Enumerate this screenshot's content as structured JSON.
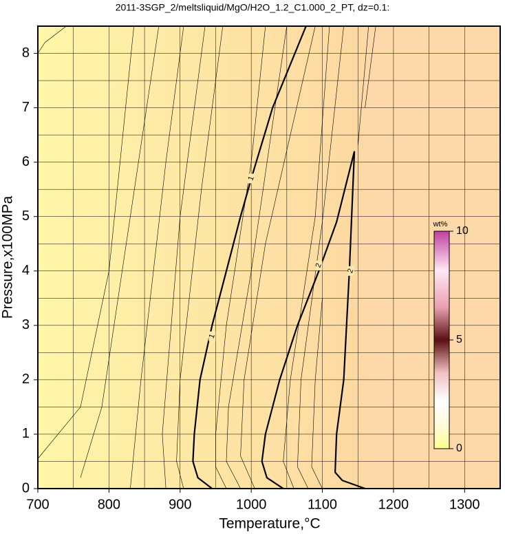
{
  "chart_data": {
    "type": "contour",
    "title": "2011-3SGP_2/meltsliquid/MgO/H2O_1.2_C1.000_2_PT, dz=0.1:",
    "x_label": "Temperature,°C",
    "y_label": "Pressure,x100MPa",
    "xlim": [
      700,
      1350
    ],
    "ylim": [
      0,
      8.5
    ],
    "xticks": [
      700,
      800,
      900,
      1000,
      1100,
      1200,
      1300
    ],
    "yticks": [
      0,
      1,
      2,
      3,
      4,
      5,
      6,
      7,
      8
    ],
    "xgrid": [
      750,
      800,
      850,
      900,
      950,
      1000,
      1050,
      1100,
      1150,
      1200,
      1250,
      1300
    ],
    "ygrid": [
      0.5,
      1,
      1.5,
      2,
      2.5,
      3,
      3.5,
      4,
      4.5,
      5,
      5.5,
      6,
      6.5,
      7,
      7.5,
      8
    ],
    "grid": true,
    "major_contours": [
      {
        "label": "1",
        "x": [
          945,
          925,
          918,
          920,
          928,
          945,
          965,
          985,
          1000,
          1030,
          1077
        ],
        "y": [
          0,
          0.2,
          0.5,
          1,
          2,
          3,
          4,
          5,
          5.7,
          7,
          8.5
        ],
        "label_x": [
          945,
          1000
        ],
        "label_y": [
          2.8,
          5.7
        ]
      },
      {
        "label": "2",
        "x": [
          1045,
          1022,
          1015,
          1020,
          1040,
          1065,
          1095,
          1120,
          1145,
          1138,
          1130,
          1120,
          1118,
          1128,
          1160
        ],
        "y": [
          0,
          0.2,
          0.5,
          1,
          2,
          3,
          4,
          4.9,
          6.2,
          4,
          2,
          1,
          0.3,
          0.15,
          0
        ],
        "label_x": [
          1095,
          1140
        ],
        "label_y": [
          4.1,
          4.0
        ]
      }
    ],
    "contours": [
      {
        "x": [
          700,
          710,
          740
        ],
        "y": [
          8.0,
          8.2,
          8.5
        ]
      },
      {
        "x": [
          700,
          760,
          800,
          835
        ],
        "y": [
          0.55,
          1.5,
          4,
          8.5
        ]
      },
      {
        "x": [
          760,
          790,
          830,
          870
        ],
        "y": [
          0.2,
          1.5,
          5,
          8.5
        ]
      },
      {
        "x": [
          830,
          845,
          880,
          905
        ],
        "y": [
          0,
          2,
          6,
          8.5
        ]
      },
      {
        "x": [
          880,
          875,
          900,
          935
        ],
        "y": [
          0,
          1,
          5,
          8.5
        ]
      },
      {
        "x": [
          905,
          895,
          900,
          930,
          960
        ],
        "y": [
          0,
          0.5,
          2,
          5.5,
          8.5
        ]
      },
      {
        "x": [
          965,
          950,
          950,
          965,
          1000,
          1020
        ],
        "y": [
          0,
          0.4,
          1,
          3,
          6,
          8.5
        ]
      },
      {
        "x": [
          985,
          965,
          968,
          1000,
          1050
        ],
        "y": [
          0,
          0.5,
          1.5,
          4,
          8.5
        ]
      },
      {
        "x": [
          1005,
          985,
          990,
          1020,
          1090
        ],
        "y": [
          0,
          0.6,
          2,
          4.5,
          8.5
        ]
      },
      {
        "x": [
          1060,
          1045,
          1055,
          1090,
          1110
        ],
        "y": [
          0,
          0.5,
          2,
          5,
          8.5
        ]
      },
      {
        "x": [
          1080,
          1065,
          1070,
          1100,
          1130
        ],
        "y": [
          0,
          0.4,
          2,
          4.9,
          8.5
        ]
      },
      {
        "x": [
          1100,
          1085,
          1090,
          1100
        ],
        "y": [
          0,
          0.4,
          2,
          3.5
        ]
      },
      {
        "x": [
          1150,
          1165
        ],
        "y": [
          6.3,
          8.5
        ]
      },
      {
        "x": [
          1160,
          1175
        ],
        "y": [
          7,
          8.5
        ]
      }
    ],
    "colorbar": {
      "label": "wt%",
      "range": [
        0,
        10
      ],
      "ticks": [
        0,
        5,
        10
      ]
    }
  }
}
